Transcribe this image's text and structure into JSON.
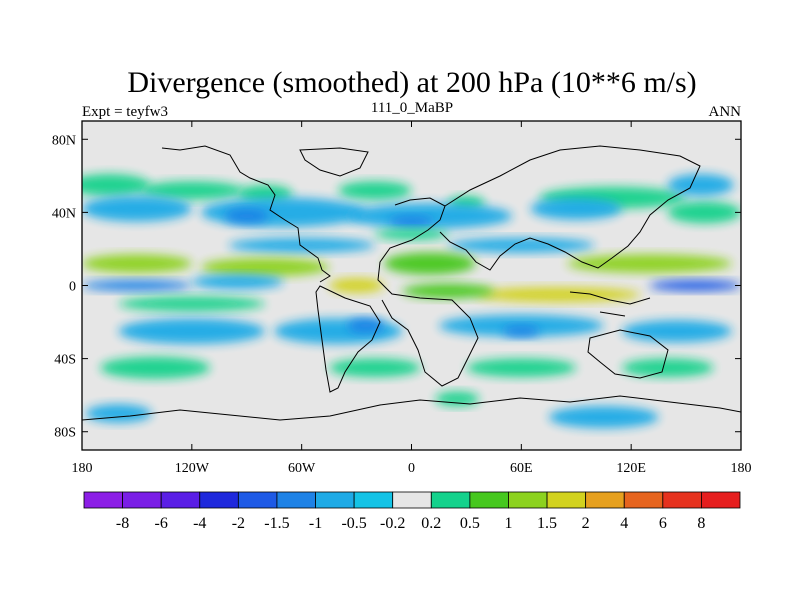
{
  "chart_data": {
    "type": "heatmap",
    "title": "Divergence (smoothed) at 200 hPa (10**6 m/s)",
    "subtitle_left": "Expt = teyfw3",
    "subtitle_center": "111_0_MaBP",
    "subtitle_right": "ANN",
    "xlim": [
      -180,
      180
    ],
    "ylim": [
      -90,
      90
    ],
    "x_ticks": [
      {
        "value": -180,
        "label": "180"
      },
      {
        "value": -120,
        "label": "120W"
      },
      {
        "value": -60,
        "label": "60W"
      },
      {
        "value": 0,
        "label": "0"
      },
      {
        "value": 60,
        "label": "60E"
      },
      {
        "value": 120,
        "label": "120E"
      },
      {
        "value": 180,
        "label": "180"
      }
    ],
    "y_ticks": [
      {
        "value": 80,
        "label": "80N"
      },
      {
        "value": 40,
        "label": "40N"
      },
      {
        "value": 0,
        "label": "0"
      },
      {
        "value": -40,
        "label": "40S"
      },
      {
        "value": -80,
        "label": "80S"
      }
    ],
    "colorbar": {
      "levels": [
        "-8",
        "-6",
        "-4",
        "-2",
        "-1.5",
        "-1",
        "-0.5",
        "-0.2",
        "0.2",
        "0.5",
        "1",
        "1.5",
        "2",
        "4",
        "6",
        "8"
      ],
      "colors": [
        "#8c1ee6",
        "#7a1ee6",
        "#5a1ee6",
        "#1e28dc",
        "#1e5ae6",
        "#1e82e6",
        "#1eaae6",
        "#14c3e6",
        "#e6e6e6",
        "#14d28c",
        "#46c81e",
        "#8cd21e",
        "#d2d21e",
        "#e6a01e",
        "#e6641e",
        "#e6321e",
        "#e61e1e"
      ]
    },
    "regions": [
      {
        "value_class": 1,
        "lon": -165,
        "lat": 55,
        "rlon": 22,
        "rlat": 6
      },
      {
        "value_class": 1,
        "lon": -120,
        "lat": 52,
        "rlon": 28,
        "rlat": 5
      },
      {
        "value_class": 1,
        "lon": -80,
        "lat": 50,
        "rlon": 15,
        "rlat": 5
      },
      {
        "value_class": 1,
        "lon": -20,
        "lat": 52,
        "rlon": 20,
        "rlat": 5
      },
      {
        "value_class": 1,
        "lon": 30,
        "lat": 45,
        "rlon": 10,
        "rlat": 4
      },
      {
        "value_class": 1,
        "lon": 110,
        "lat": 48,
        "rlon": 40,
        "rlat": 6
      },
      {
        "value_class": 1,
        "lon": 160,
        "lat": 40,
        "rlon": 20,
        "rlat": 6
      },
      {
        "value_class": -1,
        "lon": -150,
        "lat": 42,
        "rlon": 30,
        "rlat": 7
      },
      {
        "value_class": -1,
        "lon": -70,
        "lat": 40,
        "rlon": 45,
        "rlat": 8
      },
      {
        "value_class": -1,
        "lon": 10,
        "lat": 38,
        "rlon": 45,
        "rlat": 7
      },
      {
        "value_class": -1,
        "lon": 90,
        "lat": 42,
        "rlon": 25,
        "rlat": 6
      },
      {
        "value_class": -1,
        "lon": 158,
        "lat": 55,
        "rlon": 18,
        "rlat": 6
      },
      {
        "value_class": -2,
        "lon": -90,
        "lat": 38,
        "rlon": 12,
        "rlat": 4
      },
      {
        "value_class": -2,
        "lon": 0,
        "lat": 35,
        "rlon": 12,
        "rlat": 3
      },
      {
        "value_class": -1,
        "lon": -60,
        "lat": 22,
        "rlon": 40,
        "rlat": 4
      },
      {
        "value_class": -1,
        "lon": 60,
        "lat": 22,
        "rlon": 40,
        "rlat": 4
      },
      {
        "value_class": 1,
        "lon": 0,
        "lat": 28,
        "rlon": 20,
        "rlat": 3
      },
      {
        "value_class": 3,
        "lon": -150,
        "lat": 12,
        "rlon": 30,
        "rlat": 5
      },
      {
        "value_class": 3,
        "lon": -80,
        "lat": 10,
        "rlon": 35,
        "rlat": 5
      },
      {
        "value_class": 2,
        "lon": 10,
        "lat": 12,
        "rlon": 25,
        "rlat": 6
      },
      {
        "value_class": 3,
        "lon": 130,
        "lat": 12,
        "rlon": 45,
        "rlat": 5
      },
      {
        "value_class": -2,
        "lon": -150,
        "lat": 0,
        "rlon": 30,
        "rlat": 3
      },
      {
        "value_class": -3,
        "lon": 155,
        "lat": 0,
        "rlon": 25,
        "rlat": 3
      },
      {
        "value_class": -1,
        "lon": -95,
        "lat": 2,
        "rlon": 25,
        "rlat": 4
      },
      {
        "value_class": 4,
        "lon": -30,
        "lat": 0,
        "rlon": 15,
        "rlat": 4
      },
      {
        "value_class": 4,
        "lon": 80,
        "lat": -5,
        "rlon": 45,
        "rlat": 4
      },
      {
        "value_class": 2,
        "lon": 20,
        "lat": -3,
        "rlon": 25,
        "rlat": 4
      },
      {
        "value_class": 1,
        "lon": -120,
        "lat": -10,
        "rlon": 40,
        "rlat": 4
      },
      {
        "value_class": -1,
        "lon": -120,
        "lat": -25,
        "rlon": 40,
        "rlat": 7
      },
      {
        "value_class": -1,
        "lon": -40,
        "lat": -25,
        "rlon": 35,
        "rlat": 7
      },
      {
        "value_class": -1,
        "lon": 60,
        "lat": -22,
        "rlon": 45,
        "rlat": 6
      },
      {
        "value_class": -1,
        "lon": 145,
        "lat": -25,
        "rlon": 30,
        "rlat": 6
      },
      {
        "value_class": -2,
        "lon": -25,
        "lat": -22,
        "rlon": 10,
        "rlat": 4
      },
      {
        "value_class": -2,
        "lon": 60,
        "lat": -25,
        "rlon": 10,
        "rlat": 3
      },
      {
        "value_class": 1,
        "lon": -140,
        "lat": -45,
        "rlon": 30,
        "rlat": 6
      },
      {
        "value_class": 1,
        "lon": -20,
        "lat": -45,
        "rlon": 25,
        "rlat": 5
      },
      {
        "value_class": 1,
        "lon": 60,
        "lat": -45,
        "rlon": 30,
        "rlat": 5
      },
      {
        "value_class": 1,
        "lon": 140,
        "lat": -45,
        "rlon": 25,
        "rlat": 5
      },
      {
        "value_class": -1,
        "lon": -160,
        "lat": -70,
        "rlon": 18,
        "rlat": 5
      },
      {
        "value_class": -1,
        "lon": 105,
        "lat": -72,
        "rlon": 30,
        "rlat": 6
      },
      {
        "value_class": 1,
        "lon": 25,
        "lat": -62,
        "rlon": 12,
        "rlat": 4
      }
    ]
  }
}
